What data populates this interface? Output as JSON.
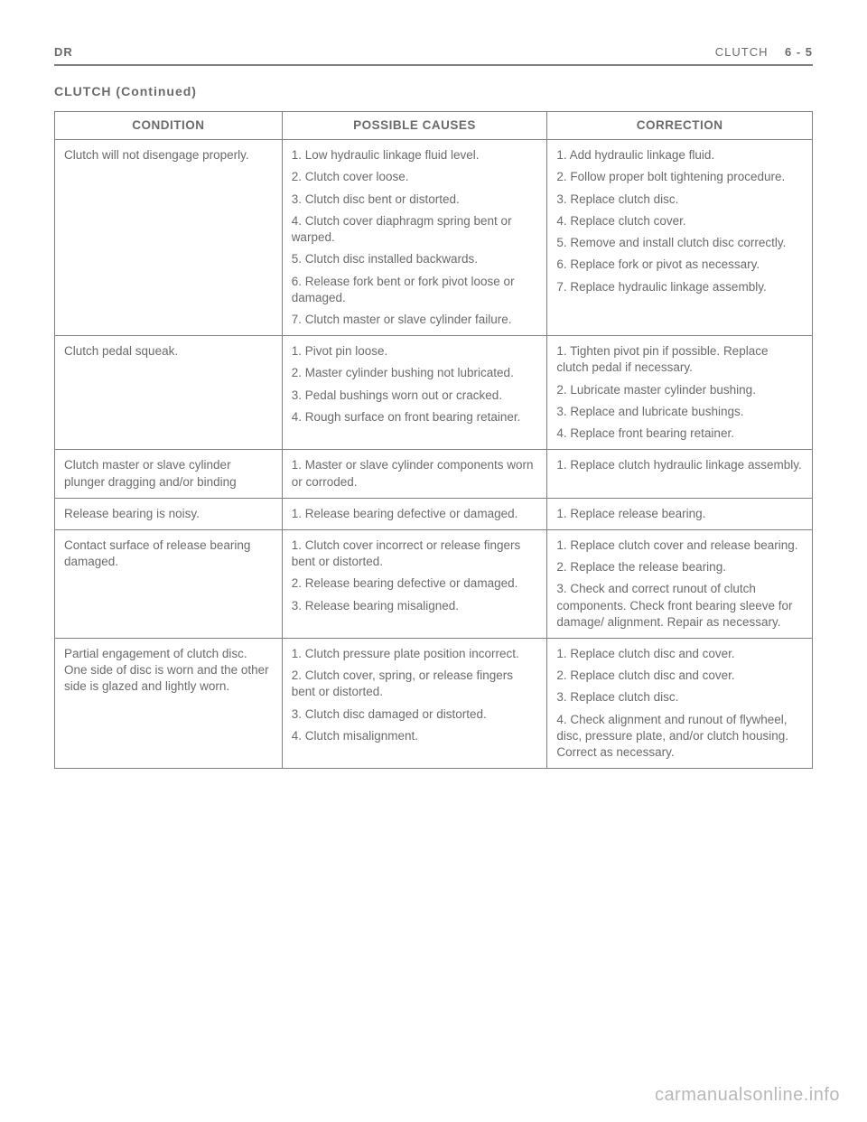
{
  "header": {
    "left": "DR",
    "right_section": "CLUTCH",
    "right_page": "6 - 5"
  },
  "continued": "CLUTCH (Continued)",
  "table": {
    "headers": [
      "CONDITION",
      "POSSIBLE CAUSES",
      "CORRECTION"
    ],
    "rows": [
      {
        "condition": "Clutch will not disengage properly.",
        "causes": [
          "1. Low hydraulic linkage fluid level.",
          "2. Clutch cover loose.",
          "3. Clutch disc bent or distorted.",
          "4. Clutch cover diaphragm spring bent or warped.",
          "5. Clutch disc installed backwards.",
          "6. Release fork bent or fork pivot loose or damaged.",
          "7. Clutch master or slave cylinder failure."
        ],
        "corrections": [
          "1. Add hydraulic linkage fluid.",
          "2. Follow proper bolt tightening procedure.",
          "3. Replace clutch disc.",
          "4. Replace clutch cover.",
          "5. Remove and install clutch disc correctly.",
          "6. Replace fork or pivot as necessary.",
          "7. Replace hydraulic linkage assembly."
        ]
      },
      {
        "condition": "Clutch pedal squeak.",
        "causes": [
          "1. Pivot pin loose.",
          "2. Master cylinder bushing not lubricated.",
          "3. Pedal bushings worn out or cracked.",
          "4. Rough surface on front bearing retainer."
        ],
        "corrections": [
          "1. Tighten pivot pin if possible. Replace clutch pedal if necessary.",
          "2. Lubricate master cylinder bushing.",
          "3. Replace and lubricate bushings.",
          "4. Replace front bearing retainer."
        ]
      },
      {
        "condition": "Clutch master or slave cylinder plunger dragging and/or binding",
        "causes": [
          "1. Master or slave cylinder components worn or corroded."
        ],
        "corrections": [
          "1. Replace clutch hydraulic linkage assembly."
        ]
      },
      {
        "condition": "Release bearing is noisy.",
        "causes": [
          "1. Release bearing defective or damaged."
        ],
        "corrections": [
          "1. Replace release bearing."
        ]
      },
      {
        "condition": "Contact surface of release bearing damaged.",
        "causes": [
          "1. Clutch cover incorrect or release fingers bent or distorted.",
          "2. Release bearing defective or damaged.",
          "3. Release bearing misaligned."
        ],
        "corrections": [
          "1. Replace clutch cover and release bearing.",
          "2. Replace the release bearing.",
          "3. Check and correct runout of clutch components. Check front bearing sleeve for damage/ alignment. Repair as necessary."
        ]
      },
      {
        "condition": "Partial engagement of clutch disc. One side of disc is worn and the other side is glazed and lightly worn.",
        "causes": [
          "1. Clutch pressure plate position incorrect.",
          "2. Clutch cover, spring, or release fingers bent or distorted.",
          "3. Clutch disc damaged or distorted.",
          "4. Clutch misalignment."
        ],
        "corrections": [
          "1. Replace clutch disc and cover.",
          "2. Replace clutch disc and cover.",
          "3. Replace clutch disc.",
          "4. Check alignment and runout of flywheel, disc, pressure plate, and/or clutch housing. Correct as necessary."
        ]
      }
    ]
  },
  "watermark": "carmanualsonline.info",
  "style": {
    "text_color": "#6b6b6b",
    "border_color": "#808080",
    "watermark_color": "#b8b8b8",
    "font_size_body": 13.5,
    "font_size_header": 13,
    "font_size_watermark": 20
  }
}
